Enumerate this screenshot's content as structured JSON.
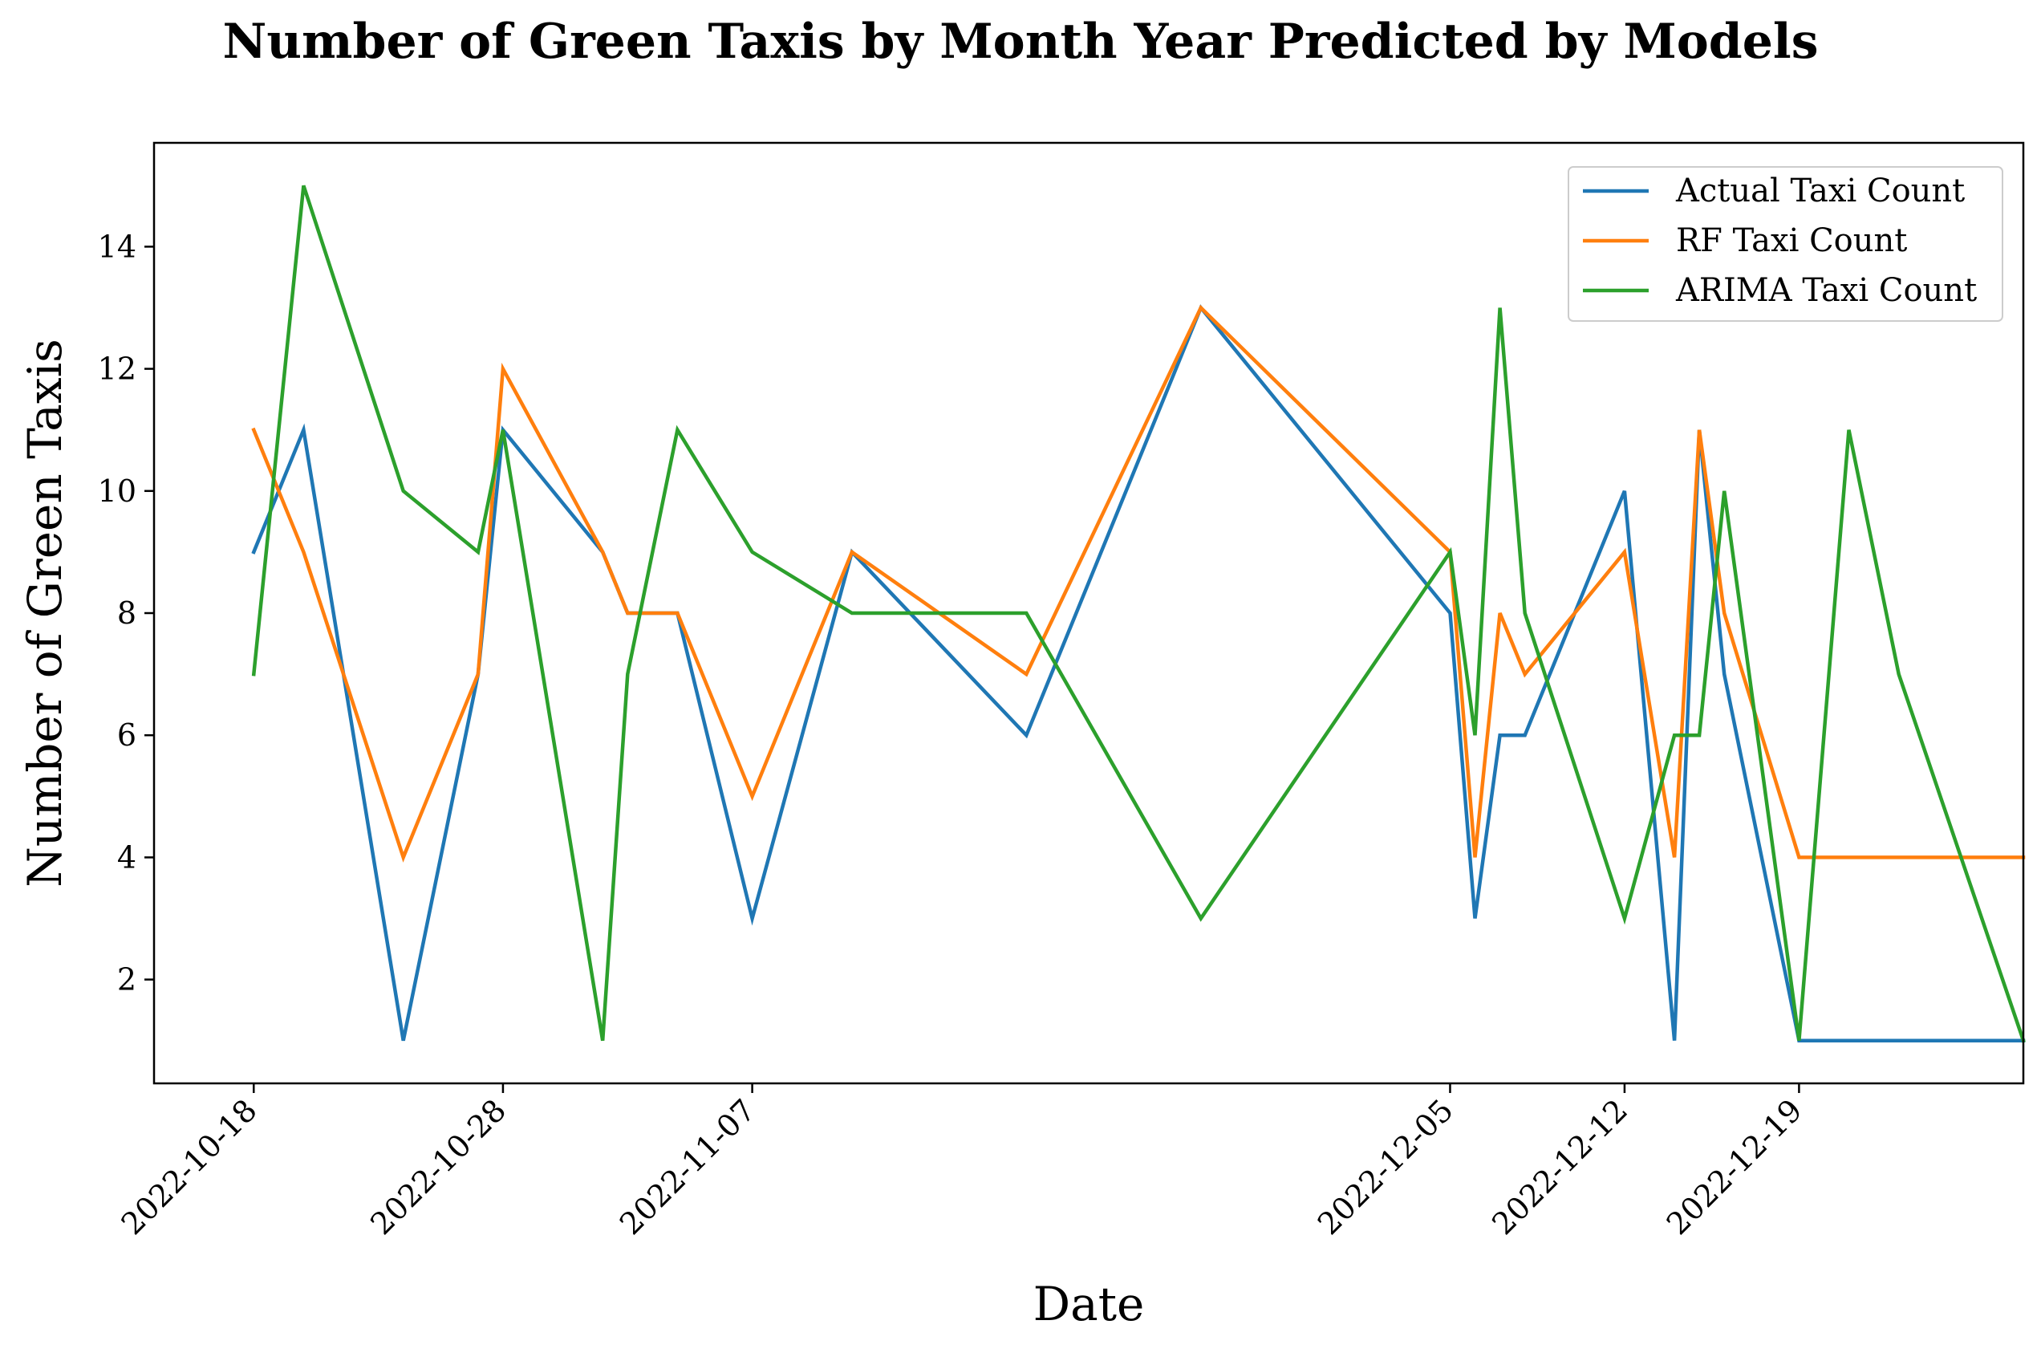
{
  "chart_data": {
    "type": "line",
    "title": "Number of Green Taxis by Month Year Predicted by Models",
    "xlabel": "Date",
    "ylabel": "Number of Green Taxis",
    "x_axis_type": "date",
    "xlim": [
      "2022-10-14",
      "2022-12-28"
    ],
    "ylim": [
      0.3,
      15.7
    ],
    "x_ticks": [
      "2022-10-18",
      "2022-10-28",
      "2022-11-07",
      "2022-12-05",
      "2022-12-12",
      "2022-12-19"
    ],
    "y_ticks": [
      2,
      4,
      6,
      8,
      10,
      12,
      14
    ],
    "grid": false,
    "legend_position": "top-right",
    "x": [
      "2022-10-18",
      "2022-10-20",
      "2022-10-24",
      "2022-10-27",
      "2022-10-28",
      "2022-11-01",
      "2022-11-02",
      "2022-11-04",
      "2022-11-07",
      "2022-11-11",
      "2022-11-18",
      "2022-11-25",
      "2022-12-05",
      "2022-12-06",
      "2022-12-07",
      "2022-12-08",
      "2022-12-12",
      "2022-12-14",
      "2022-12-15",
      "2022-12-16",
      "2022-12-19",
      "2022-12-21",
      "2022-12-23",
      "2022-12-28"
    ],
    "series": [
      {
        "name": "Actual Taxi Count",
        "color": "#1f77b4",
        "values": [
          9,
          11,
          1,
          7,
          11,
          9,
          8,
          8,
          3,
          9,
          6,
          13,
          8,
          3,
          6,
          6,
          10,
          1,
          11,
          7,
          1,
          1,
          1,
          1
        ]
      },
      {
        "name": "RF Taxi Count",
        "color": "#ff7f0e",
        "values": [
          11,
          9,
          4,
          7,
          12,
          9,
          8,
          8,
          5,
          9,
          7,
          13,
          9,
          4,
          8,
          7,
          9,
          4,
          11,
          8,
          4,
          4,
          4,
          4
        ]
      },
      {
        "name": "ARIMA Taxi Count",
        "color": "#2ca02c",
        "values": [
          7,
          15,
          10,
          9,
          11,
          1,
          7,
          11,
          9,
          8,
          8,
          3,
          9,
          6,
          13,
          8,
          3,
          6,
          6,
          10,
          1,
          11,
          7,
          1
        ]
      }
    ]
  }
}
